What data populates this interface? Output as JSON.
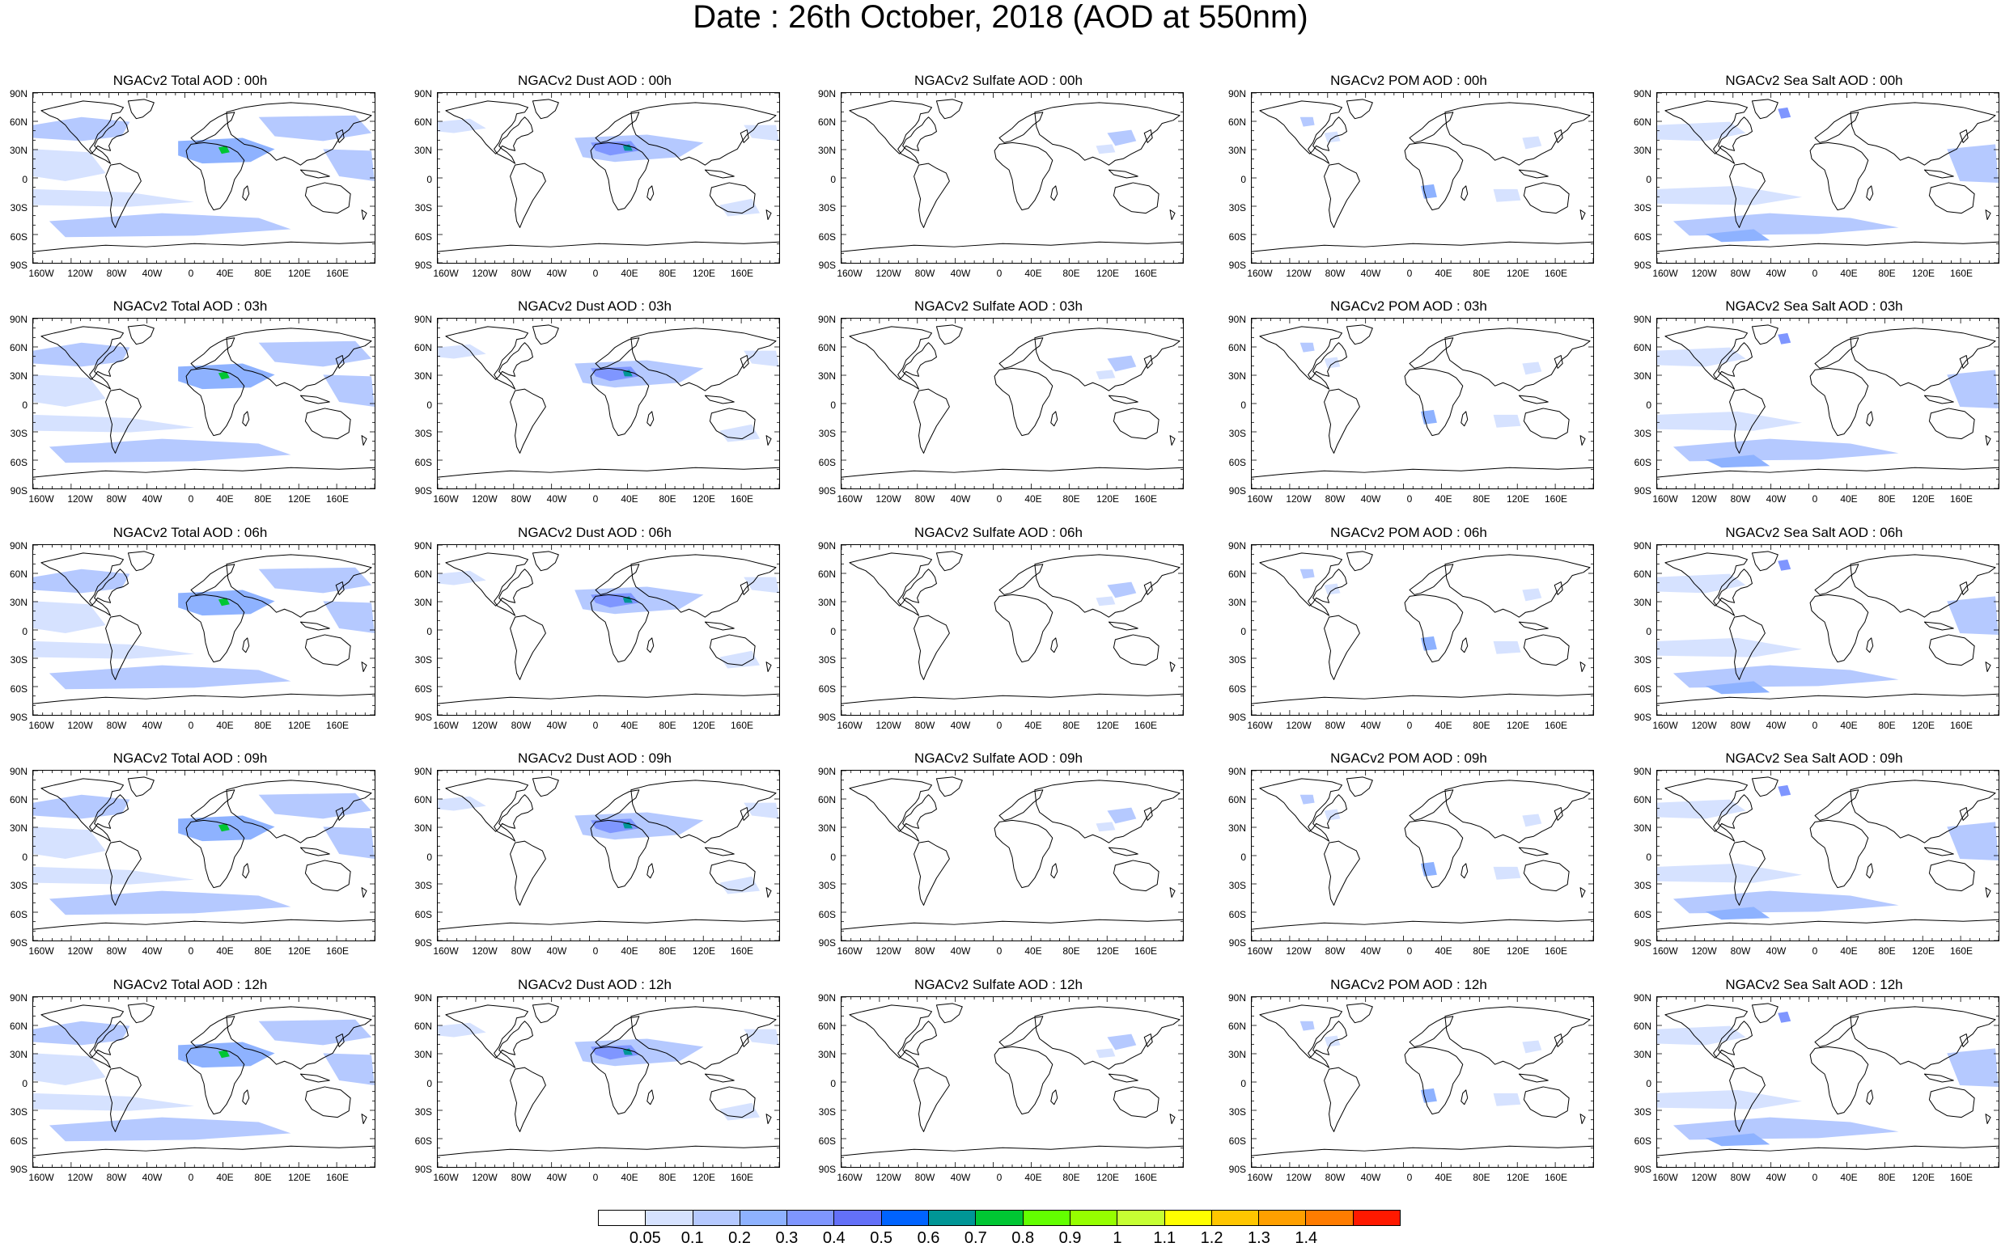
{
  "title": "Date : 26th October, 2018 (AOD at 550nm)",
  "lat_labels": [
    "90N",
    "60N",
    "30N",
    "0",
    "30S",
    "60S",
    "90S"
  ],
  "lon_labels": [
    "160W",
    "120W",
    "80W",
    "40W",
    "0",
    "40E",
    "80E",
    "120E",
    "160E"
  ],
  "panels": [
    {
      "title": "NGACv2 Total AOD : 00h",
      "species": "total"
    },
    {
      "title": "NGACv2 Dust AOD : 00h",
      "species": "dust"
    },
    {
      "title": "NGACv2 Sulfate AOD : 00h",
      "species": "sulfate"
    },
    {
      "title": "NGACv2 POM AOD : 00h",
      "species": "pom"
    },
    {
      "title": "NGACv2 Sea Salt AOD : 00h",
      "species": "seasalt"
    },
    {
      "title": "NGACv2 Total AOD : 03h",
      "species": "total"
    },
    {
      "title": "NGACv2 Dust AOD : 03h",
      "species": "dust"
    },
    {
      "title": "NGACv2 Sulfate AOD : 03h",
      "species": "sulfate"
    },
    {
      "title": "NGACv2 POM AOD : 03h",
      "species": "pom"
    },
    {
      "title": "NGACv2 Sea Salt AOD : 03h",
      "species": "seasalt"
    },
    {
      "title": "NGACv2 Total AOD : 06h",
      "species": "total"
    },
    {
      "title": "NGACv2 Dust AOD : 06h",
      "species": "dust"
    },
    {
      "title": "NGACv2 Sulfate AOD : 06h",
      "species": "sulfate"
    },
    {
      "title": "NGACv2 POM AOD : 06h",
      "species": "pom"
    },
    {
      "title": "NGACv2 Sea Salt AOD : 06h",
      "species": "seasalt"
    },
    {
      "title": "NGACv2 Total AOD : 09h",
      "species": "total"
    },
    {
      "title": "NGACv2 Dust AOD : 09h",
      "species": "dust"
    },
    {
      "title": "NGACv2 Sulfate AOD : 09h",
      "species": "sulfate"
    },
    {
      "title": "NGACv2 POM AOD : 09h",
      "species": "pom"
    },
    {
      "title": "NGACv2 Sea Salt  AOD : 09h",
      "species": "seasalt"
    },
    {
      "title": "NGACv2 Total AOD  : 12h",
      "species": "total"
    },
    {
      "title": "NGACv2 Dust AOD : 12h",
      "species": "dust"
    },
    {
      "title": "NGACv2 Sulfate AOD : 12h",
      "species": "sulfate"
    },
    {
      "title": "NGACv2 POM  AOD : 12h",
      "species": "pom"
    },
    {
      "title": "NGACv2 Sea Salt  AOD : 12h",
      "species": "seasalt"
    }
  ],
  "colorbar": {
    "labels": [
      "0.05",
      "0.1",
      "0.2",
      "0.3",
      "0.4",
      "0.5",
      "0.6",
      "0.7",
      "0.8",
      "0.9",
      "1",
      "1.1",
      "1.2",
      "1.3",
      "1.4"
    ],
    "colors": [
      "#ffffff",
      "#d6e2ff",
      "#b5c9ff",
      "#8eb2ff",
      "#7f96ff",
      "#6370f8",
      "#0063ff",
      "#009696",
      "#00c633",
      "#63ff00",
      "#96ff00",
      "#c6ff33",
      "#ffff00",
      "#ffc600",
      "#ffa000",
      "#ff7c00",
      "#ff1900"
    ]
  }
}
